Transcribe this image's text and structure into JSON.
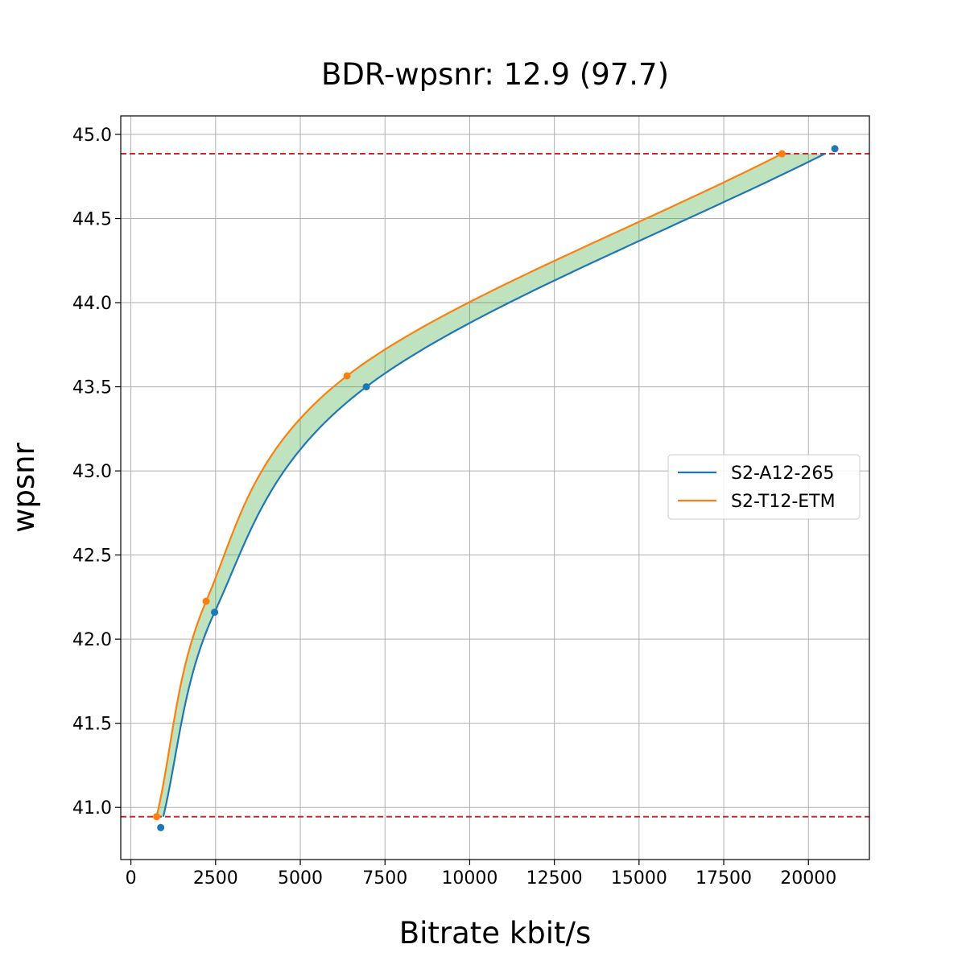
{
  "chart_data": {
    "type": "line",
    "title": "BDR-wpsnr: 12.9 (97.7)",
    "xlabel": "Bitrate kbit/s",
    "ylabel": "wpsnr",
    "xlim": [
      -300,
      21800
    ],
    "ylim": [
      40.69,
      45.11
    ],
    "xticks": [
      0,
      2500,
      5000,
      7500,
      10000,
      12500,
      15000,
      17500,
      20000
    ],
    "xtick_labels": [
      "0",
      "2500",
      "5000",
      "7500",
      "10000",
      "12500",
      "15000",
      "17500",
      "20000"
    ],
    "yticks": [
      41.0,
      41.5,
      42.0,
      42.5,
      43.0,
      43.5,
      44.0,
      44.5,
      45.0
    ],
    "ytick_labels": [
      "41.0",
      "41.5",
      "42.0",
      "42.5",
      "43.0",
      "43.5",
      "44.0",
      "44.5",
      "45.0"
    ],
    "grid": true,
    "legend_position": "center-right",
    "series": [
      {
        "name": "S2-A12-265",
        "color": "#1f77b4",
        "points": [
          [
            880,
            40.88
          ],
          [
            2470,
            42.16
          ],
          [
            6950,
            43.5
          ],
          [
            20780,
            44.915
          ]
        ]
      },
      {
        "name": "S2-T12-ETM",
        "color": "#ff7f0e",
        "points": [
          [
            760,
            40.945
          ],
          [
            2220,
            42.225
          ],
          [
            6380,
            43.565
          ],
          [
            19220,
            44.885
          ]
        ]
      }
    ],
    "reference_lines": [
      {
        "axis": "y",
        "value": 44.885,
        "color": "#d62728",
        "style": "dashed"
      },
      {
        "axis": "y",
        "value": 40.945,
        "color": "#d62728",
        "style": "dashed"
      }
    ],
    "fill_between": {
      "color": "#2ca02c",
      "opacity": 0.3
    }
  }
}
